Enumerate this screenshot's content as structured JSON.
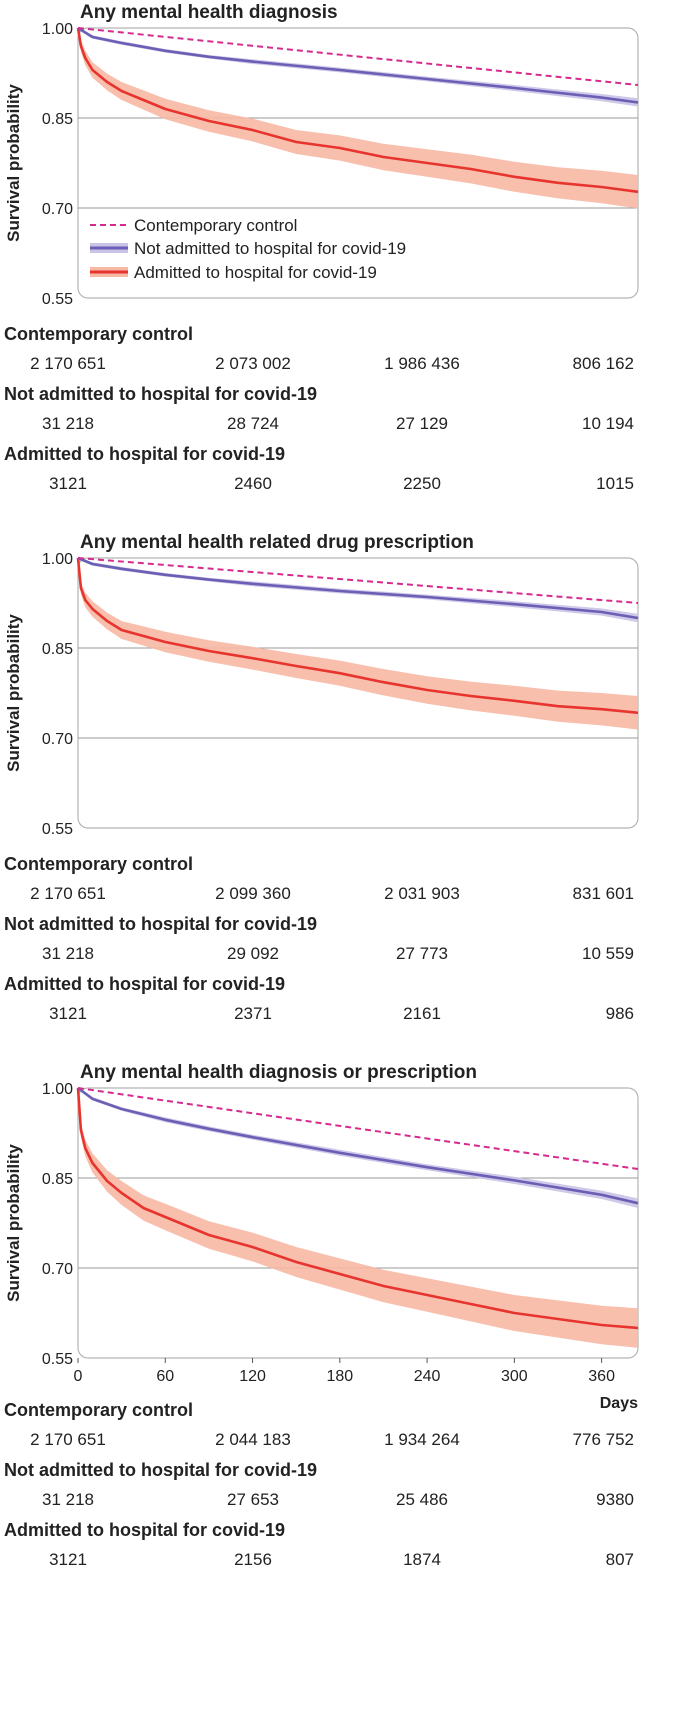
{
  "legend": [
    {
      "label": "Contemporary control",
      "key": "control"
    },
    {
      "label": "Not admitted to hospital for covid-19",
      "key": "notadmitted"
    },
    {
      "label": "Admitted to hospital for covid-19",
      "key": "admitted"
    }
  ],
  "colors": {
    "control": "#d62a8e",
    "notadmitted": "#6b5fb5",
    "notadmitted_band": "#c9c3e6",
    "admitted": "#e8342e",
    "admitted_band": "#f7b8a4",
    "grid": "#9a9a9a",
    "frame": "#b5b5b5"
  },
  "chart_data": [
    {
      "type": "line",
      "title": "Any mental health diagnosis",
      "ylabel": "Survival probability",
      "xlim": [
        0,
        385
      ],
      "ylim": [
        0.55,
        1.0
      ],
      "yticks": [
        "1.00",
        "0.85",
        "0.70",
        "0.55"
      ],
      "show_x_axis": false,
      "legend_position": "lower-left",
      "series": [
        {
          "name": "Contemporary control",
          "key": "control",
          "style": "dashed",
          "x": [
            0,
            385
          ],
          "y": [
            1.0,
            0.905
          ]
        },
        {
          "name": "Not admitted to hospital for covid-19",
          "key": "notadmitted",
          "style": "solid",
          "x": [
            0,
            10,
            30,
            60,
            90,
            120,
            180,
            240,
            300,
            360,
            385
          ],
          "y": [
            1.0,
            0.985,
            0.975,
            0.962,
            0.952,
            0.944,
            0.93,
            0.915,
            0.9,
            0.884,
            0.876
          ],
          "band": [
            0.003,
            0.003,
            0.003,
            0.003,
            0.003,
            0.004,
            0.004,
            0.004,
            0.005,
            0.006,
            0.007
          ]
        },
        {
          "name": "Admitted to hospital for covid-19",
          "key": "admitted",
          "style": "solid",
          "x": [
            0,
            2,
            5,
            10,
            20,
            30,
            45,
            60,
            90,
            120,
            150,
            180,
            210,
            240,
            270,
            300,
            330,
            360,
            385
          ],
          "y": [
            1.0,
            0.97,
            0.95,
            0.93,
            0.91,
            0.895,
            0.88,
            0.865,
            0.845,
            0.83,
            0.81,
            0.8,
            0.785,
            0.775,
            0.765,
            0.752,
            0.742,
            0.735,
            0.727
          ],
          "band": [
            0.0,
            0.01,
            0.012,
            0.013,
            0.014,
            0.015,
            0.016,
            0.017,
            0.018,
            0.019,
            0.02,
            0.021,
            0.022,
            0.023,
            0.024,
            0.025,
            0.026,
            0.027,
            0.028
          ]
        }
      ],
      "at_risk": [
        {
          "label": "Contemporary control",
          "values": [
            "2 170 651",
            "2 073 002",
            "1 986 436",
            "806 162"
          ]
        },
        {
          "label": "Not admitted to hospital for covid-19",
          "values": [
            "31 218",
            "28 724",
            "27 129",
            "10 194"
          ]
        },
        {
          "label": "Admitted to hospital for covid-19",
          "values": [
            "3121",
            "2460",
            "2250",
            "1015"
          ]
        }
      ]
    },
    {
      "type": "line",
      "title": "Any mental health related drug prescription",
      "ylabel": "Survival probability",
      "xlim": [
        0,
        385
      ],
      "ylim": [
        0.55,
        1.0
      ],
      "yticks": [
        "1.00",
        "0.85",
        "0.70",
        "0.55"
      ],
      "show_x_axis": false,
      "series": [
        {
          "name": "Contemporary control",
          "key": "control",
          "style": "dashed",
          "x": [
            0,
            385
          ],
          "y": [
            1.0,
            0.925
          ]
        },
        {
          "name": "Not admitted to hospital for covid-19",
          "key": "notadmitted",
          "style": "solid",
          "x": [
            0,
            10,
            30,
            60,
            90,
            120,
            180,
            240,
            300,
            360,
            385
          ],
          "y": [
            1.0,
            0.99,
            0.982,
            0.972,
            0.964,
            0.957,
            0.945,
            0.935,
            0.923,
            0.91,
            0.9
          ],
          "band": [
            0.003,
            0.003,
            0.003,
            0.003,
            0.003,
            0.004,
            0.004,
            0.004,
            0.005,
            0.006,
            0.007
          ]
        },
        {
          "name": "Admitted to hospital for covid-19",
          "key": "admitted",
          "style": "solid",
          "x": [
            0,
            2,
            5,
            10,
            20,
            30,
            45,
            60,
            90,
            120,
            150,
            180,
            210,
            240,
            270,
            300,
            330,
            360,
            385
          ],
          "y": [
            1.0,
            0.95,
            0.93,
            0.915,
            0.895,
            0.88,
            0.87,
            0.86,
            0.845,
            0.833,
            0.82,
            0.808,
            0.793,
            0.78,
            0.77,
            0.762,
            0.753,
            0.748,
            0.742
          ],
          "band": [
            0.0,
            0.01,
            0.012,
            0.013,
            0.014,
            0.015,
            0.016,
            0.017,
            0.018,
            0.019,
            0.02,
            0.021,
            0.022,
            0.023,
            0.024,
            0.025,
            0.026,
            0.027,
            0.028
          ]
        }
      ],
      "at_risk": [
        {
          "label": "Contemporary control",
          "values": [
            "2 170 651",
            "2 099 360",
            "2 031 903",
            "831 601"
          ]
        },
        {
          "label": "Not admitted to hospital for covid-19",
          "values": [
            "31 218",
            "29 092",
            "27 773",
            "10 559"
          ]
        },
        {
          "label": "Admitted to hospital for covid-19",
          "values": [
            "3121",
            "2371",
            "2161",
            "986"
          ]
        }
      ]
    },
    {
      "type": "line",
      "title": "Any mental health diagnosis or prescription",
      "ylabel": "Survival probability",
      "xlim": [
        0,
        385
      ],
      "ylim": [
        0.55,
        1.0
      ],
      "yticks": [
        "1.00",
        "0.85",
        "0.70",
        "0.55"
      ],
      "xticks": [
        "0",
        "60",
        "120",
        "180",
        "240",
        "300",
        "360"
      ],
      "xlabel": "Days",
      "show_x_axis": true,
      "series": [
        {
          "name": "Contemporary control",
          "key": "control",
          "style": "dashed",
          "x": [
            0,
            385
          ],
          "y": [
            1.0,
            0.865
          ]
        },
        {
          "name": "Not admitted to hospital for covid-19",
          "key": "notadmitted",
          "style": "solid",
          "x": [
            0,
            10,
            30,
            60,
            90,
            120,
            180,
            240,
            300,
            360,
            385
          ],
          "y": [
            1.0,
            0.982,
            0.965,
            0.947,
            0.932,
            0.918,
            0.892,
            0.868,
            0.846,
            0.822,
            0.808
          ],
          "band": [
            0.003,
            0.003,
            0.003,
            0.004,
            0.004,
            0.004,
            0.005,
            0.005,
            0.006,
            0.007,
            0.008
          ]
        },
        {
          "name": "Admitted to hospital for covid-19",
          "key": "admitted",
          "style": "solid",
          "x": [
            0,
            2,
            5,
            10,
            20,
            30,
            45,
            60,
            90,
            120,
            150,
            180,
            210,
            240,
            270,
            300,
            330,
            360,
            385
          ],
          "y": [
            1.0,
            0.93,
            0.9,
            0.875,
            0.845,
            0.825,
            0.8,
            0.785,
            0.755,
            0.735,
            0.71,
            0.69,
            0.67,
            0.655,
            0.64,
            0.625,
            0.615,
            0.605,
            0.6
          ],
          "band": [
            0.0,
            0.012,
            0.014,
            0.016,
            0.018,
            0.02,
            0.021,
            0.022,
            0.023,
            0.024,
            0.025,
            0.026,
            0.027,
            0.028,
            0.029,
            0.03,
            0.031,
            0.032,
            0.033
          ]
        }
      ],
      "at_risk": [
        {
          "label": "Contemporary control",
          "values": [
            "2 170 651",
            "2 044 183",
            "1 934 264",
            "776 752"
          ]
        },
        {
          "label": "Not admitted to hospital for covid-19",
          "values": [
            "31 218",
            "27 653",
            "25 486",
            "9380"
          ]
        },
        {
          "label": "Admitted to hospital for covid-19",
          "values": [
            "3121",
            "2156",
            "1874",
            "807"
          ]
        }
      ]
    }
  ]
}
